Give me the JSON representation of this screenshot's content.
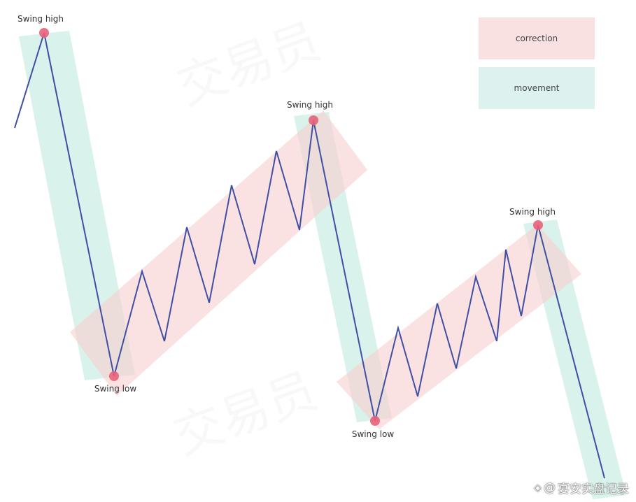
{
  "legend": {
    "correction_label": "correction",
    "movement_label": "movement"
  },
  "swing_labels": {
    "high_1": "Swing high",
    "low_1": "Swing low",
    "high_2": "Swing high",
    "low_2": "Swing low",
    "high_3": "Swing high"
  },
  "footer": {
    "logo_icon": "diamond-logo-icon",
    "at_symbol": "@",
    "account": "宴安实盘记录"
  },
  "colors": {
    "line": "#3f4fa3",
    "swing_marker": "#e8627a",
    "correction_band": "#f7c9c9",
    "movement_band": "#bfe6de"
  }
}
